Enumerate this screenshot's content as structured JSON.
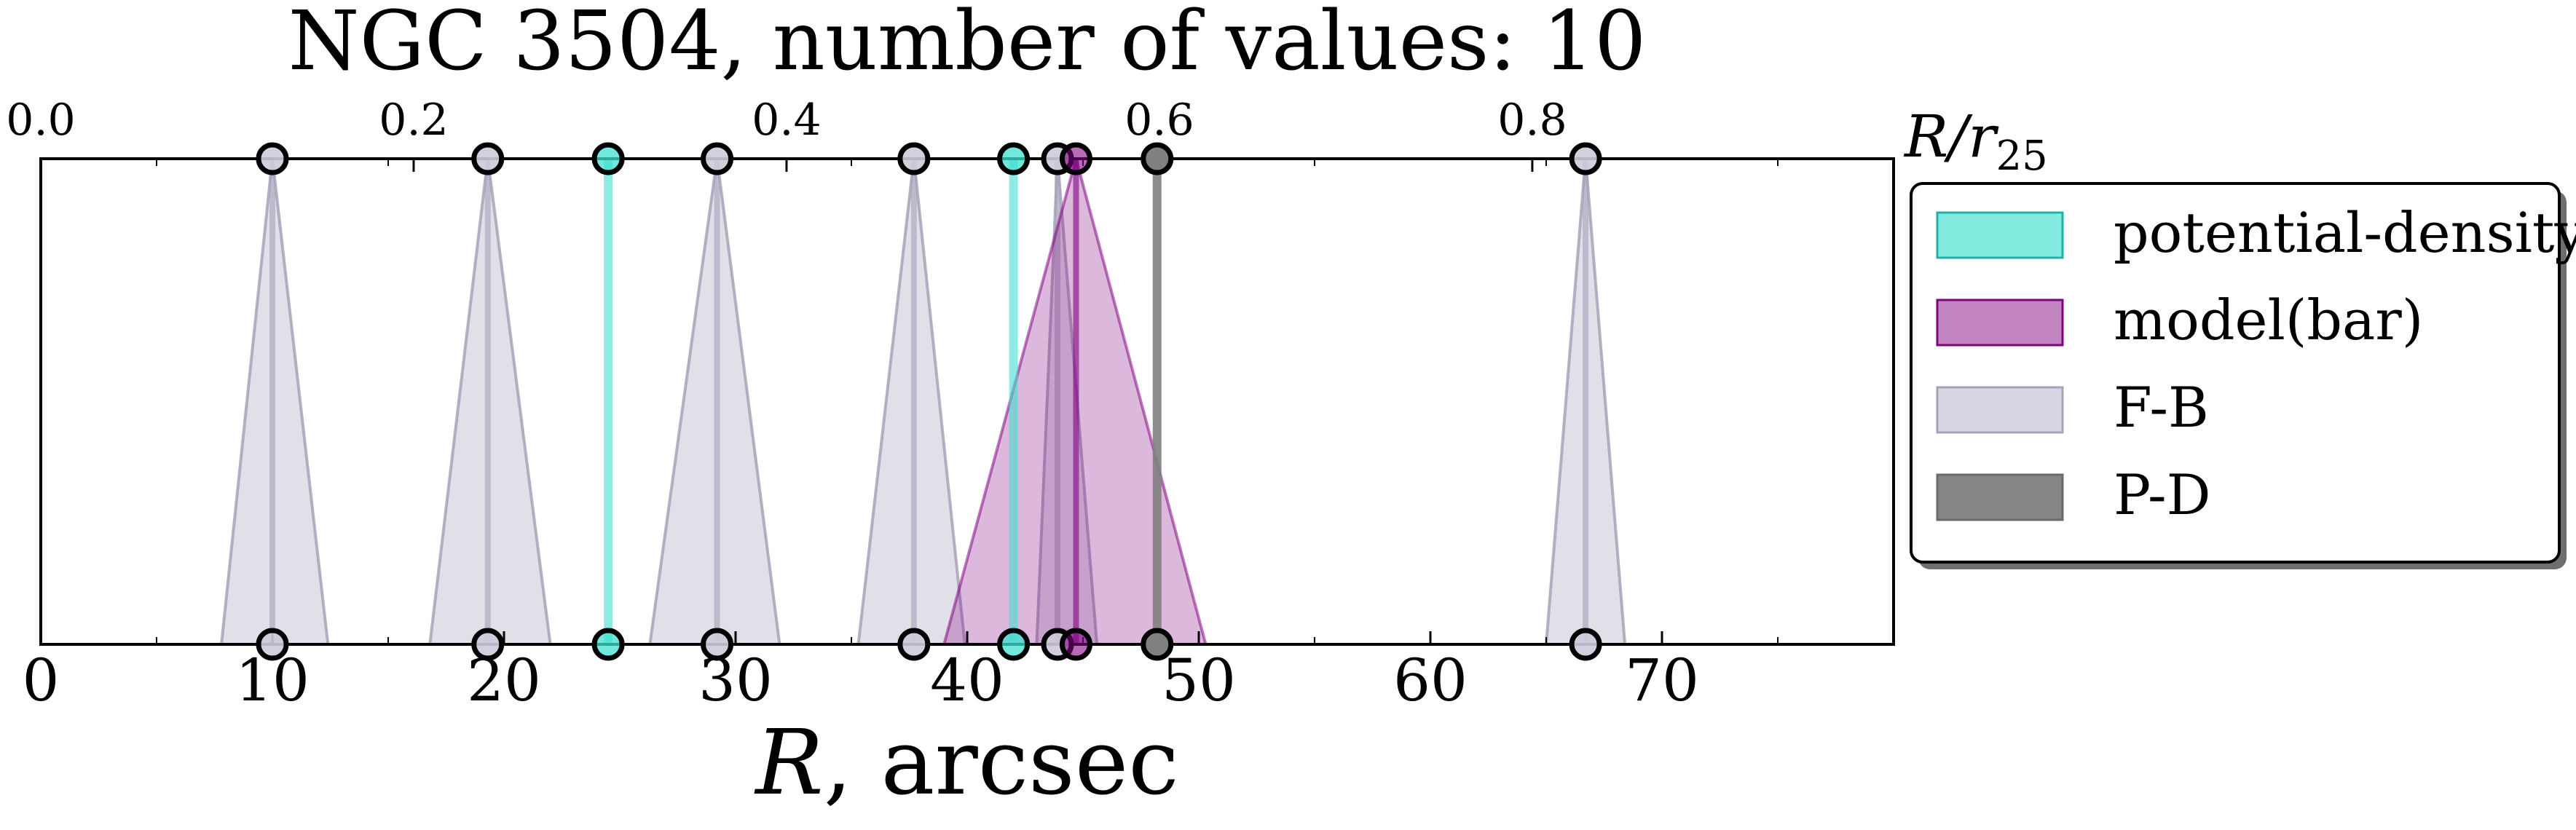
{
  "chart_data": {
    "type": "area",
    "title": "NGC 3504, number of values: 10",
    "xlabel": "R, arcsec",
    "xlabel_var": "R",
    "xlabel_unit": ", arcsec",
    "top_axis_label": "R/r25",
    "top_axis_label_main": "R/r",
    "top_axis_label_sub": "25",
    "xlim": [
      0,
      80
    ],
    "x_ticks": [
      0,
      10,
      20,
      30,
      40,
      50,
      60,
      70
    ],
    "top_ticks": [
      {
        "label": "0.0",
        "x": 0
      },
      {
        "label": "0.2",
        "x": 16.1
      },
      {
        "label": "0.4",
        "x": 32.2
      },
      {
        "label": "0.6",
        "x": 48.3
      },
      {
        "label": "0.8",
        "x": 64.4
      }
    ],
    "legend_position": "outside-right",
    "series": [
      {
        "name": "potential-density",
        "style": "line",
        "fill": "#40e0d0",
        "edge": "#20b2aa",
        "alpha": 0.45,
        "values": [
          {
            "x": 24.5
          },
          {
            "x": 42.0
          }
        ]
      },
      {
        "name": "model(bar)",
        "style": "triangle",
        "fill": "#800080",
        "edge": "#800080",
        "alpha": 0.28,
        "values": [
          {
            "x": 44.7,
            "xmin": 39.0,
            "xmax": 50.3
          }
        ]
      },
      {
        "name": "F-B",
        "style": "triangle",
        "fill": "#cfcadb",
        "edge": "#a8a2b8",
        "alpha": 0.6,
        "values": [
          {
            "x": 10.0,
            "xmin": 7.8,
            "xmax": 12.4
          },
          {
            "x": 19.3,
            "xmin": 16.8,
            "xmax": 22.0
          },
          {
            "x": 29.2,
            "xmin": 26.3,
            "xmax": 31.9
          },
          {
            "x": 37.7,
            "xmin": 35.3,
            "xmax": 39.9
          },
          {
            "x": 43.9,
            "xmin": 43.0,
            "xmax": 45.6
          },
          {
            "x": 66.7,
            "xmin": 65.0,
            "xmax": 68.4
          }
        ]
      },
      {
        "name": "P-D",
        "style": "line",
        "fill": "#808080",
        "edge": "#6a6a6a",
        "alpha": 0.75,
        "values": [
          {
            "x": 48.2
          }
        ]
      }
    ]
  }
}
